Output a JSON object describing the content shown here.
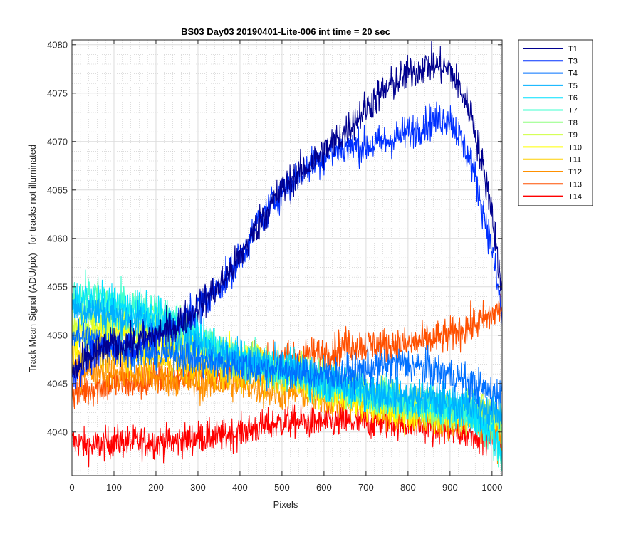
{
  "chart_data": {
    "type": "line",
    "title": "BS03 Day03 20190401-Lite-006 int time = 20 sec",
    "xlabel": "Pixels",
    "ylabel": "Track Mean Signal (ADU/pix) - for tracks not illuminated",
    "xlim": [
      0,
      1024
    ],
    "ylim": [
      4035.5,
      4080.5
    ],
    "xticks": [
      0,
      100,
      200,
      300,
      400,
      500,
      600,
      700,
      800,
      900,
      1000
    ],
    "yticks": [
      4040,
      4045,
      4050,
      4055,
      4060,
      4065,
      4070,
      4075,
      4080
    ],
    "grid": "major and minor",
    "legend_position": "outside-right",
    "x": [
      0,
      50,
      100,
      150,
      200,
      250,
      300,
      350,
      400,
      450,
      500,
      550,
      600,
      650,
      700,
      750,
      800,
      850,
      900,
      950,
      1000,
      1024
    ],
    "series": [
      {
        "name": "T1",
        "color": "#00008f",
        "noise": 1.3,
        "values": [
          4046,
          4048,
          4049,
          4049,
          4050,
          4051,
          4053,
          4055,
          4058,
          4062,
          4065,
          4067,
          4069,
          4071,
          4073.5,
          4075.5,
          4077,
          4078,
          4077.5,
          4073,
          4063,
          4054
        ]
      },
      {
        "name": "T3",
        "color": "#0030ff",
        "noise": 1.3,
        "values": [
          4046,
          4048,
          4049,
          4049,
          4050,
          4051,
          4053,
          4055,
          4058,
          4062,
          4065,
          4067,
          4068.5,
          4069.5,
          4069.5,
          4070,
          4071,
          4072,
          4072.5,
          4068,
          4059,
          4052
        ]
      },
      {
        "name": "T4",
        "color": "#0070ff",
        "noise": 1.3,
        "values": [
          4050,
          4049.5,
          4049,
          4048.5,
          4048,
          4048,
          4047.5,
          4047,
          4047,
          4046.5,
          4046.5,
          4046,
          4046,
          4046,
          4046.5,
          4047,
          4047,
          4046.5,
          4046,
          4045,
          4044,
          4044
        ]
      },
      {
        "name": "T5",
        "color": "#00b0ff",
        "noise": 1.4,
        "values": [
          4053,
          4052.5,
          4052,
          4051.5,
          4051,
          4050,
          4049,
          4048,
          4047.5,
          4047,
          4046.5,
          4046,
          4045.5,
          4045,
          4044.5,
          4044,
          4043.5,
          4043.5,
          4043,
          4042.5,
          4042,
          4042
        ]
      },
      {
        "name": "T6",
        "color": "#00e0ff",
        "noise": 1.4,
        "values": [
          4054,
          4053.5,
          4053,
          4052.5,
          4052,
          4051,
          4050,
          4048.5,
          4047.5,
          4047,
          4046.5,
          4046,
          4045,
          4044.5,
          4044,
          4043.5,
          4043,
          4043,
          4042.5,
          4042,
          4040,
          4038
        ]
      },
      {
        "name": "T7",
        "color": "#40ffcf",
        "noise": 1.4,
        "values": [
          4054,
          4054,
          4053.5,
          4053,
          4052.5,
          4051.5,
          4050,
          4048.5,
          4047.5,
          4047,
          4046.5,
          4046,
          4045,
          4044.5,
          4044,
          4043.5,
          4043,
          4043,
          4042.5,
          4042,
          4039.5,
          4037
        ]
      },
      {
        "name": "T8",
        "color": "#90ff80",
        "noise": 1.4,
        "values": [
          4053,
          4053,
          4053,
          4052.5,
          4052,
          4051,
          4049.5,
          4048.5,
          4047.5,
          4047,
          4046.5,
          4046,
          4045,
          4044.5,
          4044,
          4043.5,
          4043,
          4042.5,
          4042.5,
          4042,
          4041,
          4040
        ]
      },
      {
        "name": "T9",
        "color": "#cfff40",
        "noise": 1.4,
        "values": [
          4051,
          4051,
          4051,
          4050.5,
          4050,
          4049.5,
          4049,
          4048,
          4047.5,
          4047,
          4046.5,
          4046,
          4045,
          4044.5,
          4044,
          4043.5,
          4043,
          4042.5,
          4042,
          4042,
          4042,
          4042
        ]
      },
      {
        "name": "T10",
        "color": "#ffff00",
        "noise": 1.4,
        "values": [
          4050,
          4050,
          4050,
          4049.5,
          4049.5,
          4049,
          4048.5,
          4048,
          4047.5,
          4047,
          4046.5,
          4045.5,
          4044.5,
          4044,
          4043,
          4042.5,
          4042,
          4042,
          4042,
          4042,
          4042,
          4042
        ]
      },
      {
        "name": "T11",
        "color": "#ffcf00",
        "noise": 1.3,
        "values": [
          4048,
          4048,
          4048,
          4047.5,
          4047.5,
          4047,
          4046.5,
          4046.5,
          4046,
          4046,
          4045.5,
          4045,
          4044.5,
          4044,
          4043.5,
          4043,
          4042.5,
          4042.5,
          4042,
          4042,
          4041.5,
          4041
        ]
      },
      {
        "name": "T12",
        "color": "#ff9000",
        "noise": 1.3,
        "values": [
          4046.5,
          4046.5,
          4046,
          4046,
          4045.5,
          4045.5,
          4045,
          4045,
          4045,
          4044.5,
          4044,
          4044,
          4043.5,
          4043,
          4042.5,
          4042,
          4042,
          4041.5,
          4041,
          4041,
          4040,
          4039
        ]
      },
      {
        "name": "T13",
        "color": "#ff5000",
        "noise": 1.3,
        "values": [
          4044,
          4044.5,
          4045,
          4045,
          4045.5,
          4045.5,
          4046,
          4046,
          4046.5,
          4047,
          4047.5,
          4048,
          4048,
          4049,
          4049,
          4049,
          4049,
          4049.5,
          4050,
          4051,
          4052,
          4053
        ]
      },
      {
        "name": "T14",
        "color": "#ff0000",
        "noise": 1.2,
        "values": [
          4039,
          4038.5,
          4039,
          4039,
          4039,
          4039,
          4039.5,
          4039.5,
          4040,
          4040.5,
          4041,
          4041,
          4041,
          4041,
          4041,
          4041,
          4041,
          4040.5,
          4040,
          4040,
          4039.5,
          4039
        ]
      }
    ]
  }
}
